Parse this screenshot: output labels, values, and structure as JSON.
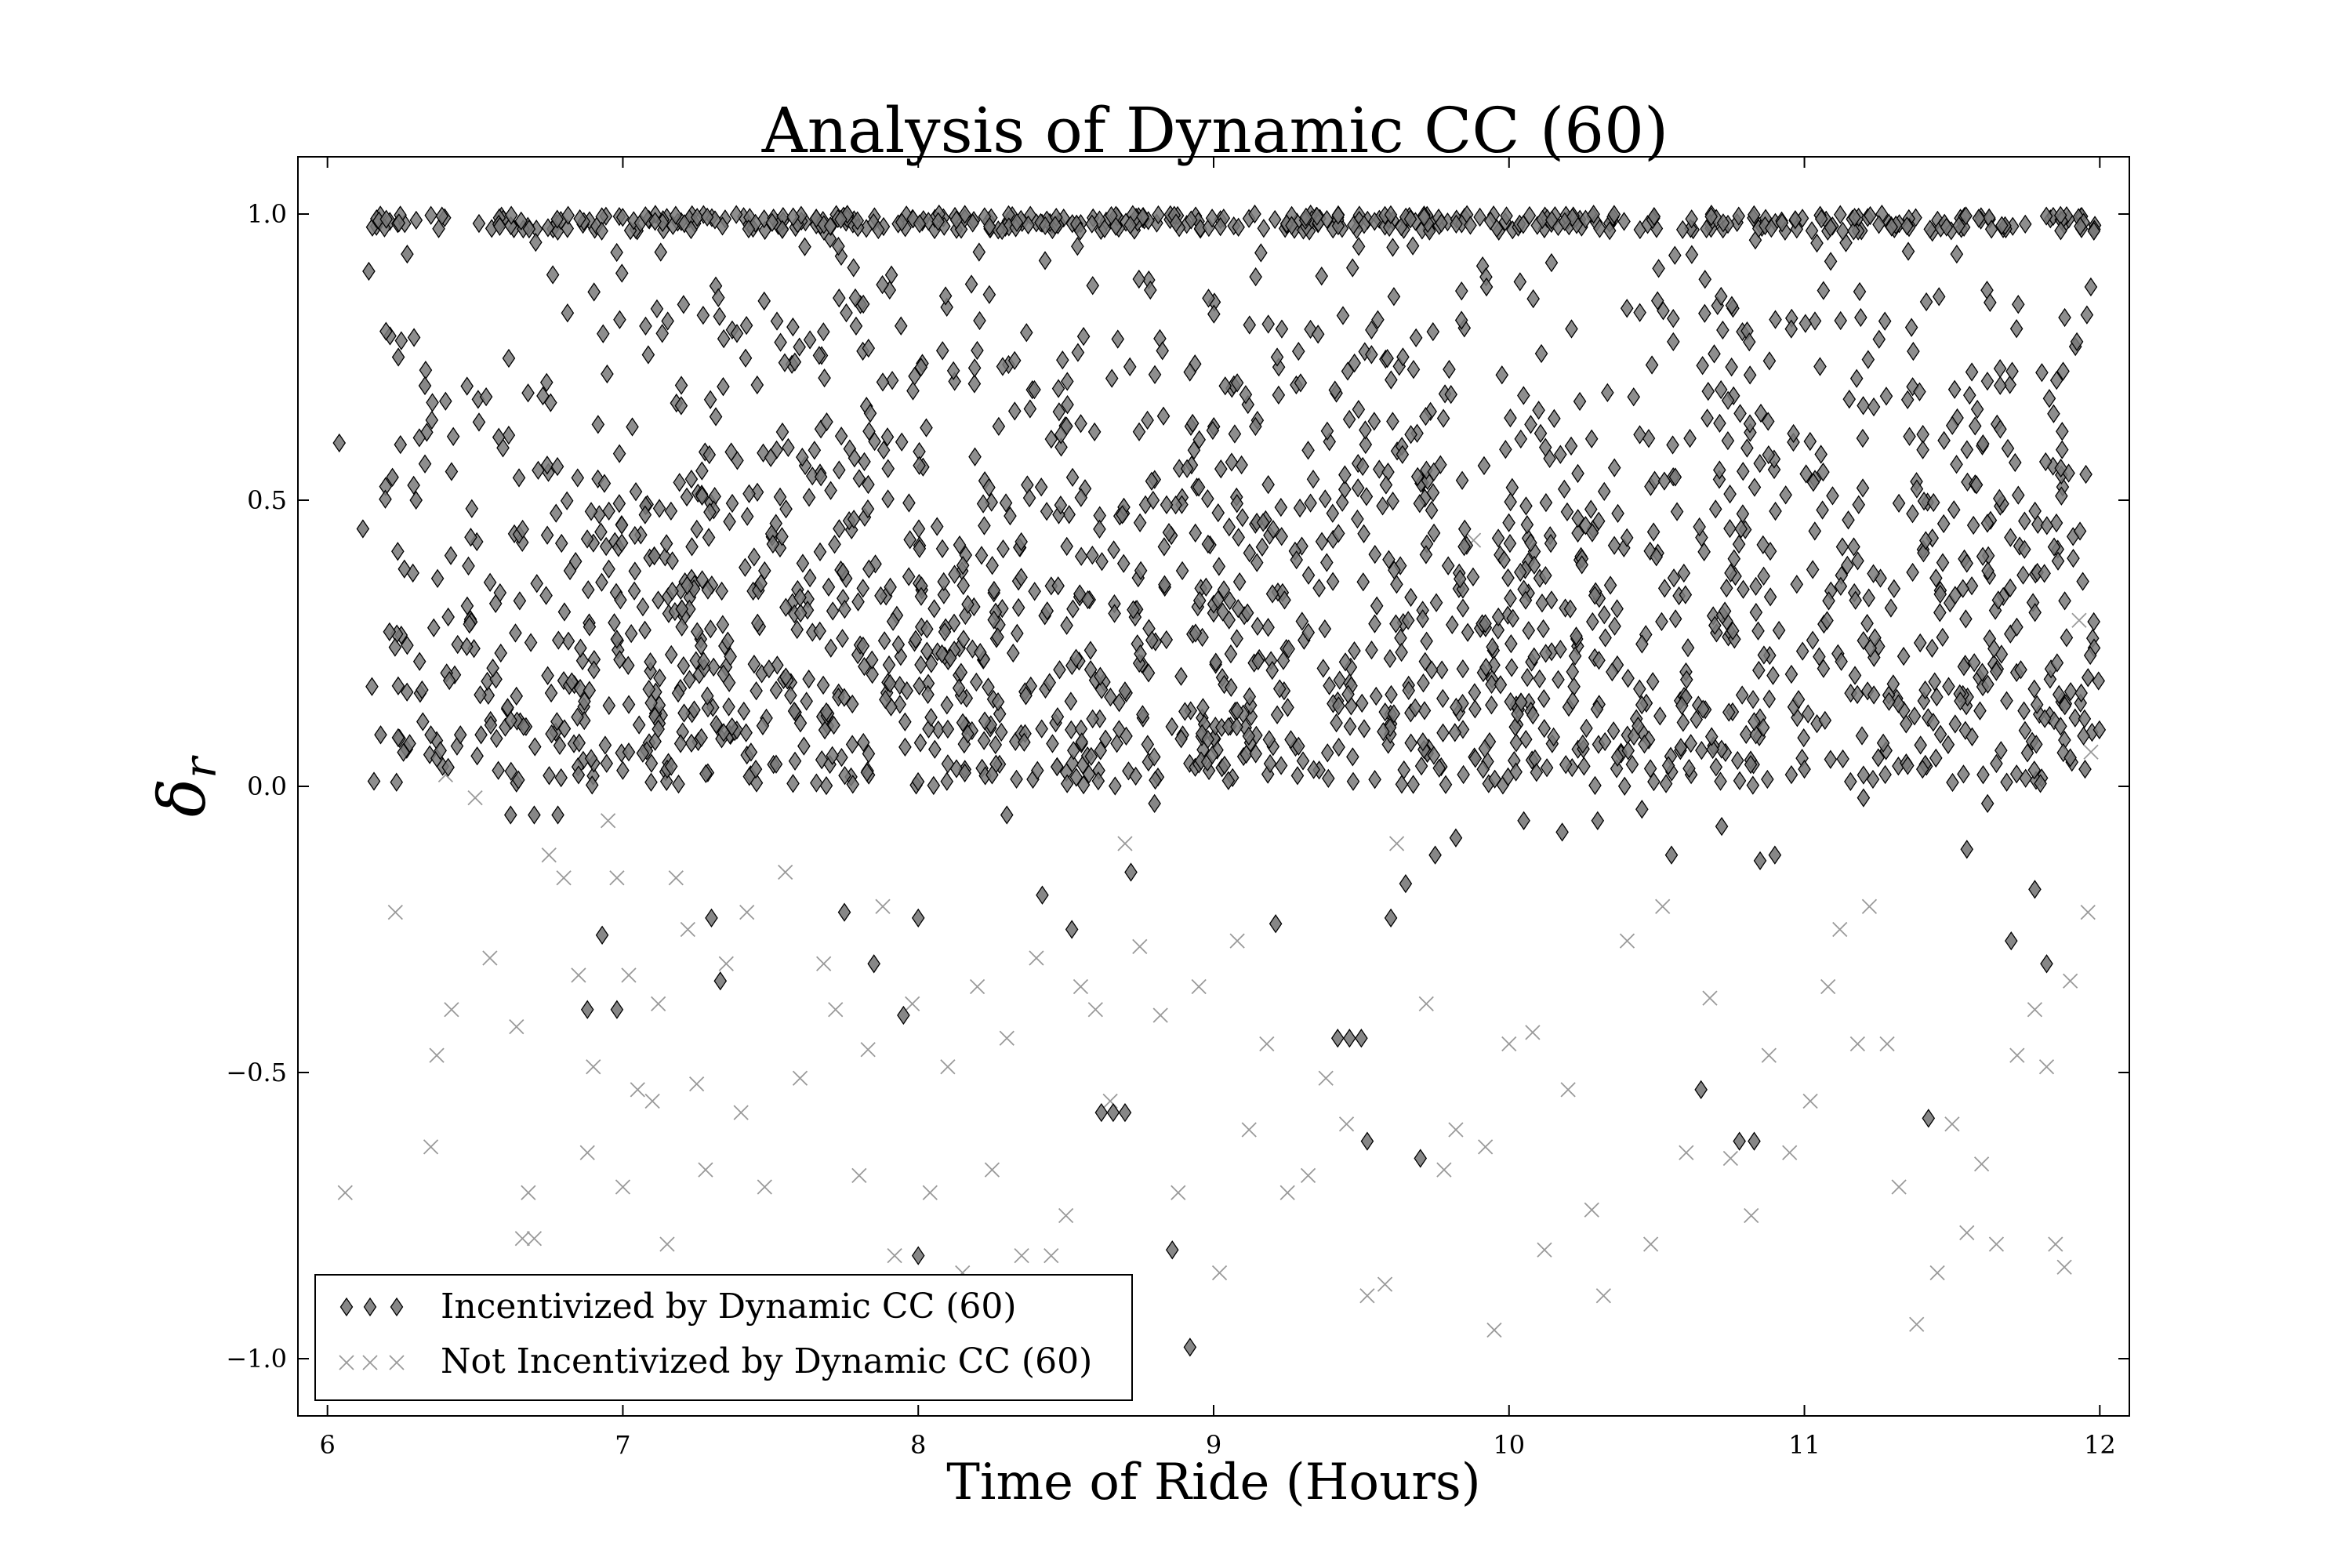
{
  "chart_data": {
    "type": "scatter",
    "title": "Analysis of Dynamic CC (60)",
    "xlabel": "Time of Ride (Hours)",
    "ylabel": {
      "main": "δ",
      "sub": "r"
    },
    "xlim": [
      5.9,
      12.1
    ],
    "ylim": [
      -1.1,
      1.1
    ],
    "xticks": [
      6,
      7,
      8,
      9,
      10,
      11,
      12
    ],
    "xtick_labels": [
      "6",
      "7",
      "8",
      "9",
      "10",
      "11",
      "12"
    ],
    "yticks": [
      1.0,
      0.5,
      0.0,
      -0.5,
      -1.0
    ],
    "ytick_labels": [
      "1.0",
      "0.5",
      "0.0",
      "−0.5",
      "−1.0"
    ],
    "grid": false,
    "legend_position": "lower-left",
    "colors": {
      "incentivized_fill": "#7a7a7a",
      "incentivized_edge": "#000000",
      "not_incentivized": "#9a9a9a"
    },
    "series": [
      {
        "name": "Incentivized by Dynamic CC (60)",
        "marker": "diamond",
        "points": [
          [
            6.04,
            0.6
          ],
          [
            6.12,
            0.45
          ],
          [
            6.14,
            0.9
          ],
          [
            6.18,
            0.09
          ],
          [
            6.21,
            0.27
          ],
          [
            6.22,
            0.54
          ],
          [
            6.24,
            0.75
          ],
          [
            6.27,
            0.93
          ],
          [
            6.3,
            0.5
          ],
          [
            6.33,
            0.7
          ],
          [
            6.35,
            0.09
          ],
          [
            6.42,
            0.55
          ],
          [
            6.45,
            0.09
          ],
          [
            6.52,
            0.09
          ],
          [
            6.58,
            0.61
          ],
          [
            6.62,
            -0.05
          ],
          [
            6.7,
            -0.05
          ],
          [
            6.78,
            -0.05
          ],
          [
            6.85,
            0.02
          ],
          [
            6.88,
            -0.39
          ],
          [
            6.93,
            -0.26
          ],
          [
            6.98,
            -0.39
          ],
          [
            7.02,
            0.06
          ],
          [
            7.12,
            0.1
          ],
          [
            7.2,
            0.31
          ],
          [
            7.3,
            -0.23
          ],
          [
            7.33,
            -0.34
          ],
          [
            7.45,
            0.03
          ],
          [
            7.6,
            0.33
          ],
          [
            7.75,
            -0.22
          ],
          [
            7.85,
            -0.31
          ],
          [
            7.95,
            -0.4
          ],
          [
            8.0,
            -0.23
          ],
          [
            8.0,
            -0.82
          ],
          [
            8.1,
            0.1
          ],
          [
            8.25,
            0.02
          ],
          [
            8.3,
            -0.05
          ],
          [
            8.42,
            -0.19
          ],
          [
            8.52,
            -0.25
          ],
          [
            8.62,
            -0.57
          ],
          [
            8.66,
            -0.57
          ],
          [
            8.7,
            -0.57
          ],
          [
            8.72,
            -0.15
          ],
          [
            8.8,
            -0.03
          ],
          [
            8.86,
            -0.81
          ],
          [
            8.92,
            -0.98
          ],
          [
            9.05,
            0.01
          ],
          [
            9.21,
            -0.24
          ],
          [
            9.42,
            -0.44
          ],
          [
            9.46,
            -0.44
          ],
          [
            9.5,
            -0.44
          ],
          [
            9.52,
            -0.62
          ],
          [
            9.6,
            -0.23
          ],
          [
            9.65,
            -0.17
          ],
          [
            9.7,
            -0.65
          ],
          [
            9.75,
            -0.12
          ],
          [
            9.82,
            -0.09
          ],
          [
            10.05,
            -0.06
          ],
          [
            10.18,
            -0.08
          ],
          [
            10.3,
            -0.06
          ],
          [
            10.45,
            -0.04
          ],
          [
            10.55,
            -0.12
          ],
          [
            10.65,
            -0.53
          ],
          [
            10.72,
            -0.07
          ],
          [
            10.78,
            -0.62
          ],
          [
            10.83,
            -0.62
          ],
          [
            10.85,
            -0.13
          ],
          [
            10.9,
            -0.12
          ],
          [
            11.0,
            0.03
          ],
          [
            11.2,
            -0.02
          ],
          [
            11.25,
            0.05
          ],
          [
            11.4,
            0.03
          ],
          [
            11.42,
            -0.58
          ],
          [
            11.55,
            -0.11
          ],
          [
            11.62,
            -0.03
          ],
          [
            11.7,
            -0.27
          ],
          [
            11.78,
            -0.18
          ],
          [
            11.82,
            -0.31
          ],
          [
            11.9,
            0.05
          ],
          [
            11.95,
            0.03
          ],
          [
            11.96,
            0.19
          ],
          [
            11.98,
            0.97
          ]
        ],
        "dense_band": {
          "x_range": [
            6.14,
            12.0
          ],
          "y_range": [
            0.0,
            1.0
          ],
          "peak_hours": [
            8.0,
            10.0
          ]
        }
      },
      {
        "name": "Not Incentivized by Dynamic CC (60)",
        "marker": "x",
        "points": [
          [
            6.06,
            -0.71
          ],
          [
            6.23,
            -0.22
          ],
          [
            6.35,
            -0.63
          ],
          [
            6.37,
            -0.47
          ],
          [
            6.4,
            0.02
          ],
          [
            6.42,
            -0.39
          ],
          [
            6.5,
            -0.02
          ],
          [
            6.55,
            -0.3
          ],
          [
            6.64,
            -0.42
          ],
          [
            6.66,
            -0.79
          ],
          [
            6.68,
            -0.71
          ],
          [
            6.7,
            -0.79
          ],
          [
            6.75,
            -0.12
          ],
          [
            6.8,
            -0.16
          ],
          [
            6.85,
            -0.33
          ],
          [
            6.88,
            -0.64
          ],
          [
            6.9,
            -0.49
          ],
          [
            6.95,
            -0.06
          ],
          [
            6.98,
            -0.16
          ],
          [
            7.0,
            -0.7
          ],
          [
            7.02,
            -0.33
          ],
          [
            7.05,
            -0.53
          ],
          [
            7.1,
            -0.55
          ],
          [
            7.12,
            -0.38
          ],
          [
            7.15,
            -0.8
          ],
          [
            7.18,
            -0.16
          ],
          [
            7.22,
            -0.25
          ],
          [
            7.25,
            -0.52
          ],
          [
            7.28,
            -0.67
          ],
          [
            7.35,
            -0.31
          ],
          [
            7.4,
            -0.57
          ],
          [
            7.42,
            -0.22
          ],
          [
            7.48,
            -0.7
          ],
          [
            7.55,
            -0.15
          ],
          [
            7.6,
            -0.51
          ],
          [
            7.68,
            -0.31
          ],
          [
            7.72,
            -0.39
          ],
          [
            7.8,
            -0.68
          ],
          [
            7.83,
            -0.46
          ],
          [
            7.88,
            -0.21
          ],
          [
            7.92,
            -0.82
          ],
          [
            7.98,
            -0.38
          ],
          [
            8.04,
            -0.71
          ],
          [
            8.1,
            -0.49
          ],
          [
            8.15,
            -0.85
          ],
          [
            8.2,
            -0.35
          ],
          [
            8.25,
            -0.67
          ],
          [
            8.3,
            -0.44
          ],
          [
            8.35,
            -0.82
          ],
          [
            8.4,
            -0.3
          ],
          [
            8.45,
            -0.82
          ],
          [
            8.5,
            -0.75
          ],
          [
            8.55,
            -0.35
          ],
          [
            8.6,
            -0.39
          ],
          [
            8.65,
            -0.55
          ],
          [
            8.7,
            -0.1
          ],
          [
            8.75,
            -0.28
          ],
          [
            8.82,
            -0.4
          ],
          [
            8.88,
            -0.71
          ],
          [
            8.95,
            -0.35
          ],
          [
            9.02,
            -0.85
          ],
          [
            9.08,
            -0.27
          ],
          [
            9.12,
            -0.6
          ],
          [
            9.18,
            -0.45
          ],
          [
            9.25,
            -0.71
          ],
          [
            9.32,
            -0.68
          ],
          [
            9.38,
            -0.51
          ],
          [
            9.45,
            -0.59
          ],
          [
            9.52,
            -0.89
          ],
          [
            9.58,
            -0.87
          ],
          [
            9.62,
            -0.1
          ],
          [
            9.72,
            -0.38
          ],
          [
            9.78,
            -0.67
          ],
          [
            9.82,
            -0.6
          ],
          [
            9.88,
            0.43
          ],
          [
            9.92,
            -0.63
          ],
          [
            9.95,
            -0.95
          ],
          [
            10.0,
            -0.45
          ],
          [
            10.08,
            -0.43
          ],
          [
            10.12,
            -0.81
          ],
          [
            10.2,
            -0.53
          ],
          [
            10.28,
            -0.74
          ],
          [
            10.32,
            -0.89
          ],
          [
            10.4,
            -0.27
          ],
          [
            10.48,
            -0.8
          ],
          [
            10.52,
            -0.21
          ],
          [
            10.6,
            -0.64
          ],
          [
            10.68,
            -0.37
          ],
          [
            10.75,
            -0.65
          ],
          [
            10.82,
            -0.75
          ],
          [
            10.88,
            -0.47
          ],
          [
            10.95,
            -0.64
          ],
          [
            11.02,
            -0.55
          ],
          [
            11.08,
            -0.35
          ],
          [
            11.12,
            -0.25
          ],
          [
            11.18,
            -0.45
          ],
          [
            11.22,
            -0.21
          ],
          [
            11.28,
            -0.45
          ],
          [
            11.32,
            -0.7
          ],
          [
            11.38,
            -0.94
          ],
          [
            11.45,
            -0.85
          ],
          [
            11.5,
            -0.59
          ],
          [
            11.55,
            -0.78
          ],
          [
            11.6,
            -0.66
          ],
          [
            11.65,
            -0.8
          ],
          [
            11.72,
            -0.47
          ],
          [
            11.78,
            -0.39
          ],
          [
            11.82,
            -0.49
          ],
          [
            11.85,
            -0.8
          ],
          [
            11.88,
            -0.84
          ],
          [
            11.9,
            -0.34
          ],
          [
            11.93,
            0.29
          ],
          [
            11.96,
            -0.22
          ],
          [
            11.97,
            0.06
          ]
        ]
      }
    ]
  }
}
